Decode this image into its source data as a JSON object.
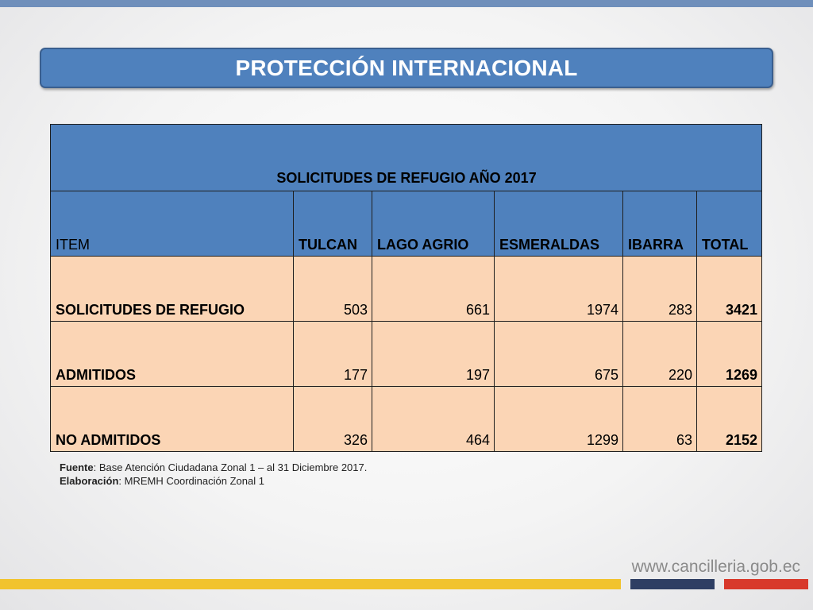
{
  "header": {
    "title": "PROTECCIÓN INTERNACIONAL"
  },
  "table": {
    "caption": "SOLICITUDES DE REFUGIO AÑO 2017",
    "columns": [
      "ITEM",
      "TULCAN",
      "LAGO AGRIO",
      "ESMERALDAS",
      "IBARRA",
      "TOTAL"
    ],
    "rows": [
      {
        "label": "SOLICITUDES DE REFUGIO",
        "tulcan": "503",
        "lago_agrio": "661",
        "esmeraldas": "1974",
        "ibarra": "283",
        "total": "3421"
      },
      {
        "label": "ADMITIDOS",
        "tulcan": "177",
        "lago_agrio": "197",
        "esmeraldas": "675",
        "ibarra": "220",
        "total": "1269"
      },
      {
        "label": "NO ADMITIDOS",
        "tulcan": "326",
        "lago_agrio": "464",
        "esmeraldas": "1299",
        "ibarra": "63",
        "total": "2152"
      }
    ]
  },
  "notes": {
    "source_label": "Fuente",
    "source_text": ": Base Atención Ciudadana Zonal 1 – al 31 Diciembre 2017.",
    "elaboration_label": "Elaboración",
    "elaboration_text": ": MREMH Coordinación Zonal 1"
  },
  "footer": {
    "website": "www.cancilleria.gob.ec",
    "stripe_colors": [
      "#f1c32e",
      "#2e3e63",
      "#d8392b"
    ]
  },
  "colors": {
    "banner": "#4f81bd",
    "header_cells": "#4f81bd",
    "body_cells": "#fbd5b5"
  }
}
